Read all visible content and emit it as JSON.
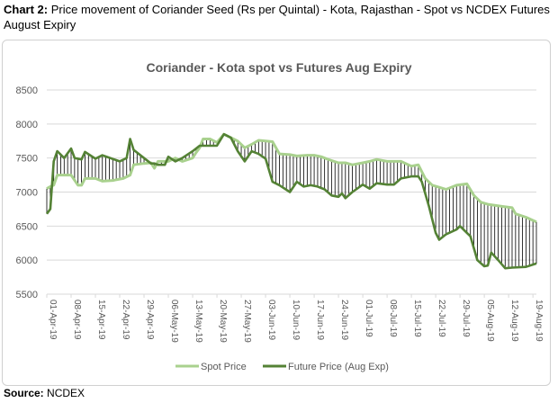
{
  "heading": {
    "label": "Chart 2:",
    "text": " Price movement of Coriander Seed (Rs per Quintal) - Kota, Rajasthan - Spot vs NCDEX Futures August Expiry"
  },
  "source": {
    "label": "Source:",
    "text": " NCDEX"
  },
  "chart_data": {
    "type": "line",
    "title": "Coriander - Kota spot vs Futures Aug Expiry",
    "ylim": [
      5500,
      8500
    ],
    "yticks": [
      5500,
      6000,
      6500,
      7000,
      7500,
      8000,
      8500
    ],
    "grid": "horizontal",
    "legend_position": "bottom",
    "xtick_labels": [
      "01-Apr-19",
      "08-Apr-19",
      "15-Apr-19",
      "22-Apr-19",
      "29-Apr-19",
      "06-May-19",
      "13-May-19",
      "20-May-19",
      "27-May-19",
      "03-Jun-19",
      "10-Jun-19",
      "17-Jun-19",
      "24-Jun-19",
      "01-Jul-19",
      "08-Jul-19",
      "15-Jul-19",
      "22-Jul-19",
      "29-Jul-19",
      "05-Aug-19",
      "12-Aug-19",
      "19-Aug-19"
    ],
    "x_start": "2019-04-01",
    "x_end": "2019-08-20",
    "colors": {
      "spot": "#a9d18e",
      "futures": "#548235",
      "spread": "#000000",
      "grid": "#d9d9d9"
    },
    "series": [
      {
        "name": "Spot Price",
        "key": "spot",
        "points": [
          [
            "2019-04-01",
            7050
          ],
          [
            "2019-04-02",
            7080
          ],
          [
            "2019-04-03",
            7100
          ],
          [
            "2019-04-04",
            7250
          ],
          [
            "2019-04-06",
            7250
          ],
          [
            "2019-04-08",
            7250
          ],
          [
            "2019-04-10",
            7100
          ],
          [
            "2019-04-11",
            7100
          ],
          [
            "2019-04-12",
            7200
          ],
          [
            "2019-04-15",
            7200
          ],
          [
            "2019-04-17",
            7160
          ],
          [
            "2019-04-20",
            7170
          ],
          [
            "2019-04-23",
            7200
          ],
          [
            "2019-04-25",
            7250
          ],
          [
            "2019-04-26",
            7400
          ],
          [
            "2019-04-29",
            7420
          ],
          [
            "2019-05-01",
            7430
          ],
          [
            "2019-05-02",
            7350
          ],
          [
            "2019-05-03",
            7450
          ],
          [
            "2019-05-06",
            7450
          ],
          [
            "2019-05-08",
            7500
          ],
          [
            "2019-05-10",
            7450
          ],
          [
            "2019-05-13",
            7500
          ],
          [
            "2019-05-14",
            7580
          ],
          [
            "2019-05-15",
            7650
          ],
          [
            "2019-05-16",
            7780
          ],
          [
            "2019-05-18",
            7780
          ],
          [
            "2019-05-20",
            7730
          ],
          [
            "2019-05-22",
            7850
          ],
          [
            "2019-05-24",
            7800
          ],
          [
            "2019-05-26",
            7750
          ],
          [
            "2019-05-28",
            7650
          ],
          [
            "2019-05-30",
            7700
          ],
          [
            "2019-06-01",
            7760
          ],
          [
            "2019-06-03",
            7750
          ],
          [
            "2019-06-05",
            7740
          ],
          [
            "2019-06-07",
            7560
          ],
          [
            "2019-06-10",
            7550
          ],
          [
            "2019-06-12",
            7530
          ],
          [
            "2019-06-15",
            7540
          ],
          [
            "2019-06-17",
            7540
          ],
          [
            "2019-06-19",
            7520
          ],
          [
            "2019-06-21",
            7480
          ],
          [
            "2019-06-24",
            7430
          ],
          [
            "2019-06-26",
            7430
          ],
          [
            "2019-06-28",
            7400
          ],
          [
            "2019-07-01",
            7430
          ],
          [
            "2019-07-03",
            7450
          ],
          [
            "2019-07-05",
            7480
          ],
          [
            "2019-07-08",
            7450
          ],
          [
            "2019-07-10",
            7450
          ],
          [
            "2019-07-12",
            7450
          ],
          [
            "2019-07-15",
            7380
          ],
          [
            "2019-07-17",
            7400
          ],
          [
            "2019-07-19",
            7200
          ],
          [
            "2019-07-21",
            7100
          ],
          [
            "2019-07-23",
            7070
          ],
          [
            "2019-07-25",
            7040
          ],
          [
            "2019-07-28",
            7100
          ],
          [
            "2019-07-31",
            7120
          ],
          [
            "2019-08-02",
            6950
          ],
          [
            "2019-08-04",
            6850
          ],
          [
            "2019-08-06",
            6820
          ],
          [
            "2019-08-10",
            6790
          ],
          [
            "2019-08-13",
            6770
          ],
          [
            "2019-08-14",
            6680
          ],
          [
            "2019-08-17",
            6630
          ],
          [
            "2019-08-20",
            6560
          ]
        ]
      },
      {
        "name": "Future Price (Aug Exp)",
        "key": "futures",
        "points": [
          [
            "2019-04-01",
            6680
          ],
          [
            "2019-04-02",
            6750
          ],
          [
            "2019-04-03",
            7450
          ],
          [
            "2019-04-04",
            7600
          ],
          [
            "2019-04-06",
            7500
          ],
          [
            "2019-04-08",
            7640
          ],
          [
            "2019-04-09",
            7500
          ],
          [
            "2019-04-11",
            7480
          ],
          [
            "2019-04-12",
            7590
          ],
          [
            "2019-04-15",
            7490
          ],
          [
            "2019-04-17",
            7540
          ],
          [
            "2019-04-22",
            7450
          ],
          [
            "2019-04-24",
            7500
          ],
          [
            "2019-04-25",
            7780
          ],
          [
            "2019-04-26",
            7620
          ],
          [
            "2019-04-29",
            7500
          ],
          [
            "2019-05-01",
            7420
          ],
          [
            "2019-05-02",
            7420
          ],
          [
            "2019-05-03",
            7400
          ],
          [
            "2019-05-05",
            7400
          ],
          [
            "2019-05-06",
            7520
          ],
          [
            "2019-05-08",
            7450
          ],
          [
            "2019-05-10",
            7500
          ],
          [
            "2019-05-13",
            7600
          ],
          [
            "2019-05-15",
            7680
          ],
          [
            "2019-05-17",
            7680
          ],
          [
            "2019-05-20",
            7680
          ],
          [
            "2019-05-22",
            7850
          ],
          [
            "2019-05-24",
            7800
          ],
          [
            "2019-05-26",
            7600
          ],
          [
            "2019-05-28",
            7450
          ],
          [
            "2019-05-30",
            7600
          ],
          [
            "2019-06-01",
            7560
          ],
          [
            "2019-06-03",
            7490
          ],
          [
            "2019-06-05",
            7150
          ],
          [
            "2019-06-07",
            7100
          ],
          [
            "2019-06-10",
            7000
          ],
          [
            "2019-06-12",
            7150
          ],
          [
            "2019-06-14",
            7080
          ],
          [
            "2019-06-16",
            7100
          ],
          [
            "2019-06-18",
            7080
          ],
          [
            "2019-06-20",
            7040
          ],
          [
            "2019-06-22",
            6950
          ],
          [
            "2019-06-24",
            6930
          ],
          [
            "2019-06-25",
            6980
          ],
          [
            "2019-06-26",
            6910
          ],
          [
            "2019-06-28",
            7000
          ],
          [
            "2019-07-01",
            7110
          ],
          [
            "2019-07-03",
            7050
          ],
          [
            "2019-07-05",
            7130
          ],
          [
            "2019-07-08",
            7110
          ],
          [
            "2019-07-10",
            7110
          ],
          [
            "2019-07-12",
            7200
          ],
          [
            "2019-07-15",
            7230
          ],
          [
            "2019-07-17",
            7230
          ],
          [
            "2019-07-18",
            7150
          ],
          [
            "2019-07-20",
            6800
          ],
          [
            "2019-07-22",
            6400
          ],
          [
            "2019-07-23",
            6300
          ],
          [
            "2019-07-25",
            6380
          ],
          [
            "2019-07-28",
            6450
          ],
          [
            "2019-07-29",
            6500
          ],
          [
            "2019-07-31",
            6400
          ],
          [
            "2019-08-01",
            6350
          ],
          [
            "2019-08-03",
            6000
          ],
          [
            "2019-08-05",
            5910
          ],
          [
            "2019-08-06",
            5920
          ],
          [
            "2019-08-07",
            6110
          ],
          [
            "2019-08-09",
            6000
          ],
          [
            "2019-08-11",
            5880
          ],
          [
            "2019-08-13",
            5890
          ],
          [
            "2019-08-17",
            5900
          ],
          [
            "2019-08-20",
            5950
          ]
        ]
      }
    ]
  }
}
